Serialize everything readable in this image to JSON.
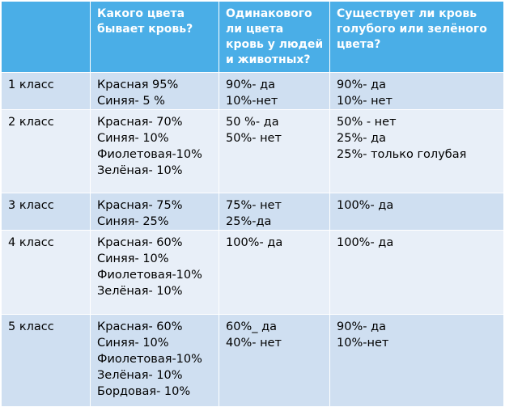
{
  "table": {
    "headers": [
      "",
      "Какого цвета бывает кровь?",
      "Одинакового ли цвета кровь у людей и животных?",
      "Существует ли кровь голубого или зелёного цвета?"
    ],
    "rows": [
      {
        "grade": "1 класс",
        "colors": [
          "Красная 95%",
          "Синяя- 5 %"
        ],
        "same": [
          "90%- да",
          "10%-нет"
        ],
        "exists": [
          "90%- да",
          "10%- нет"
        ]
      },
      {
        "grade": "2 класс",
        "colors": [
          "Красная- 70%",
          "Синяя- 10%",
          "Фиолетовая-10%",
          "Зелёная- 10%"
        ],
        "same": [
          "50 %- да",
          "50%- нет"
        ],
        "exists": [
          "50% - нет",
          "25%- да",
          "25%- только голубая"
        ]
      },
      {
        "grade": "3 класс",
        "colors": [
          "Красная- 75%",
          "Синяя- 25%"
        ],
        "same": [
          "75%- нет",
          "25%-да"
        ],
        "exists": [
          "100%- да"
        ]
      },
      {
        "grade": "4 класс",
        "colors": [
          "Красная- 60%",
          "Синяя- 10%",
          "Фиолетовая-10%",
          "Зелёная- 10%"
        ],
        "same": [
          "100%- да"
        ],
        "exists": [
          "100%- да"
        ]
      },
      {
        "grade": "5 класс",
        "colors": [
          "Красная- 60%",
          "Синяя- 10%",
          "Фиолетовая-10%",
          "Зелёная- 10%",
          "Бордовая- 10%"
        ],
        "same": [
          "60%_ да",
          "40%- нет"
        ],
        "exists": [
          "90%- да",
          "10%-нет"
        ]
      }
    ]
  },
  "colors": {
    "header_bg": "#4aaee7",
    "row_dark": "#cfdff1",
    "row_light": "#e8eff8",
    "border": "#ffffff"
  }
}
